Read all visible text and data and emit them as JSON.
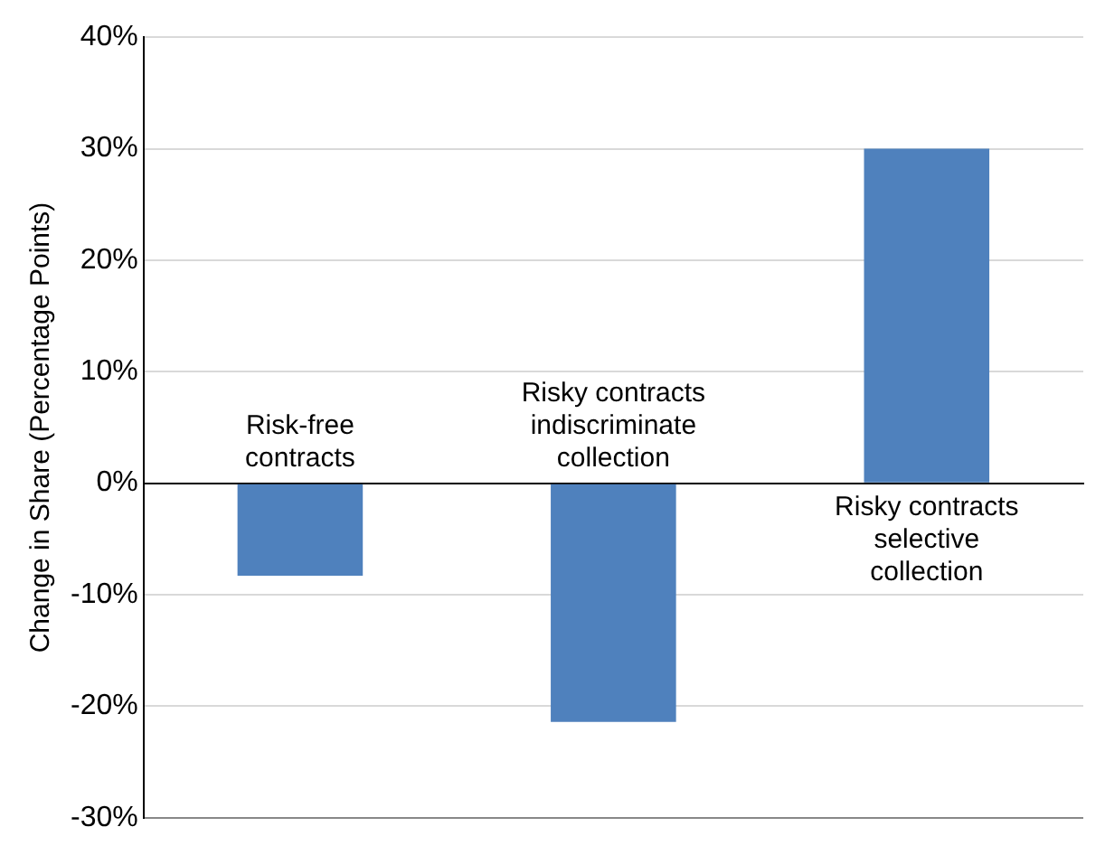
{
  "chart_data": {
    "type": "bar",
    "ylabel": "Change in Share (Percentage Points)",
    "categories": [
      "Risk-free contracts",
      "Risky contracts indiscriminate collection",
      "Risky contracts selective collection"
    ],
    "values": [
      -8.3,
      -21.4,
      30
    ],
    "color": "#4f81bd",
    "ylim": [
      -30,
      40
    ],
    "yticks": [
      {
        "value": -30,
        "label": "-30%"
      },
      {
        "value": -20,
        "label": "-20%"
      },
      {
        "value": -10,
        "label": "-10%"
      },
      {
        "value": 0,
        "label": "0%"
      },
      {
        "value": 10,
        "label": "10%"
      },
      {
        "value": 20,
        "label": "20%"
      },
      {
        "value": 30,
        "label": "30%"
      },
      {
        "value": 40,
        "label": "40%"
      }
    ],
    "grid": "y"
  }
}
